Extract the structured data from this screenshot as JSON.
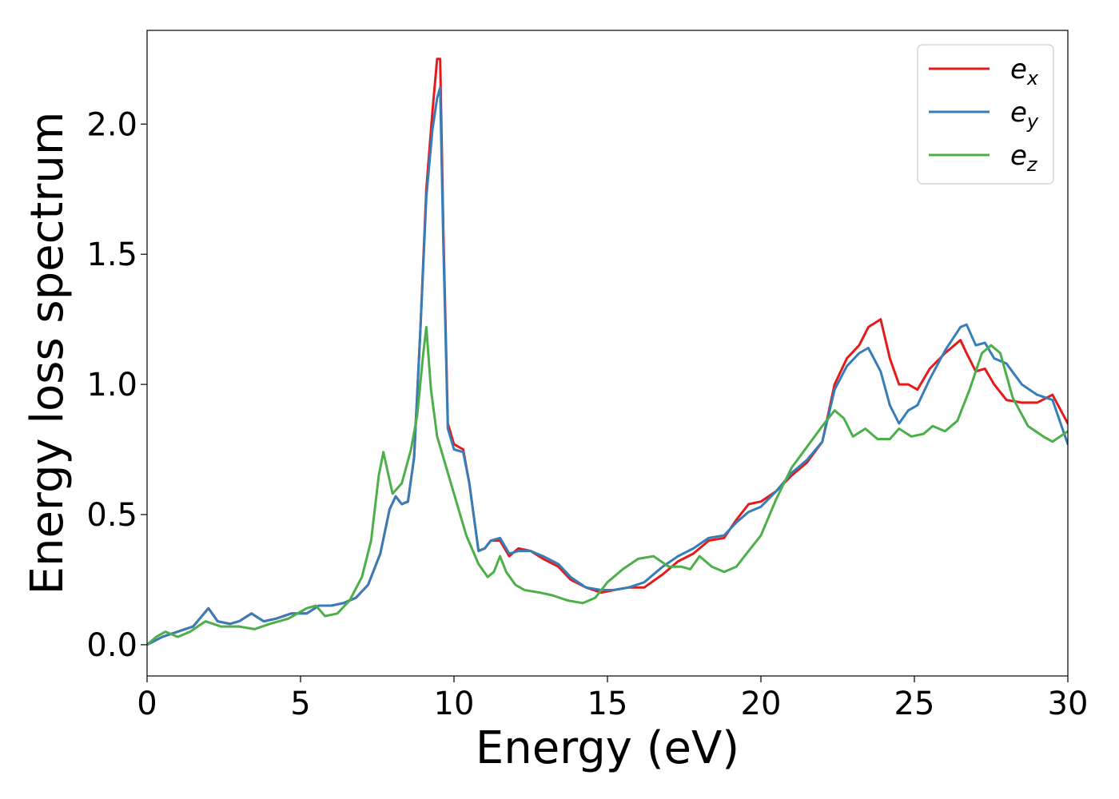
{
  "chart_data": {
    "type": "line",
    "xlabel": "Energy (eV)",
    "ylabel": "Energy loss spectrum",
    "xlim": [
      0,
      30
    ],
    "ylim": [
      -0.12,
      2.36
    ],
    "xticks": [
      0,
      5,
      10,
      15,
      20,
      25,
      30
    ],
    "yticks": [
      0.0,
      0.5,
      1.0,
      1.5,
      2.0
    ],
    "xtick_labels": [
      "0",
      "5",
      "10",
      "15",
      "20",
      "25",
      "30"
    ],
    "ytick_labels": [
      "0.0",
      "0.5",
      "1.0",
      "1.5",
      "2.0"
    ],
    "grid": false,
    "legend_position": "top-right",
    "series": [
      {
        "name": "e_x",
        "legend_base": "e",
        "legend_sub": "x",
        "color": "#e41a1c",
        "x": [
          0,
          0.5,
          1.0,
          1.5,
          2.0,
          2.3,
          2.7,
          3.0,
          3.4,
          3.8,
          4.2,
          4.7,
          5.2,
          5.6,
          6.0,
          6.4,
          6.8,
          7.2,
          7.6,
          7.9,
          8.1,
          8.3,
          8.5,
          8.7,
          8.9,
          9.1,
          9.3,
          9.45,
          9.55,
          9.65,
          9.8,
          10.0,
          10.3,
          10.5,
          10.8,
          11.0,
          11.2,
          11.5,
          11.8,
          12.1,
          12.5,
          12.9,
          13.4,
          13.8,
          14.3,
          14.8,
          15.2,
          15.7,
          16.2,
          16.8,
          17.3,
          17.8,
          18.3,
          18.8,
          19.2,
          19.6,
          20.0,
          20.5,
          21.0,
          21.5,
          22.0,
          22.4,
          22.8,
          23.2,
          23.5,
          23.9,
          24.2,
          24.5,
          24.8,
          25.1,
          25.5,
          26.0,
          26.5,
          26.7,
          27.0,
          27.3,
          27.6,
          28.0,
          28.5,
          29.0,
          29.5,
          30.0
        ],
        "y": [
          0.0,
          0.03,
          0.05,
          0.07,
          0.14,
          0.09,
          0.08,
          0.09,
          0.12,
          0.09,
          0.1,
          0.12,
          0.12,
          0.15,
          0.15,
          0.16,
          0.18,
          0.23,
          0.35,
          0.52,
          0.57,
          0.54,
          0.55,
          0.72,
          1.2,
          1.75,
          2.05,
          2.25,
          2.25,
          1.6,
          0.85,
          0.77,
          0.75,
          0.62,
          0.36,
          0.37,
          0.4,
          0.4,
          0.34,
          0.37,
          0.36,
          0.33,
          0.3,
          0.25,
          0.22,
          0.2,
          0.21,
          0.22,
          0.22,
          0.27,
          0.32,
          0.35,
          0.4,
          0.41,
          0.48,
          0.54,
          0.55,
          0.59,
          0.65,
          0.7,
          0.78,
          1.0,
          1.1,
          1.15,
          1.22,
          1.25,
          1.1,
          1.0,
          1.0,
          0.98,
          1.06,
          1.12,
          1.17,
          1.12,
          1.05,
          1.06,
          1.0,
          0.94,
          0.93,
          0.93,
          0.96,
          0.85
        ]
      },
      {
        "name": "e_y",
        "legend_base": "e",
        "legend_sub": "y",
        "color": "#377eb8",
        "x": [
          0,
          0.5,
          1.0,
          1.5,
          2.0,
          2.3,
          2.7,
          3.0,
          3.4,
          3.8,
          4.2,
          4.7,
          5.2,
          5.6,
          6.0,
          6.4,
          6.8,
          7.2,
          7.6,
          7.9,
          8.1,
          8.3,
          8.5,
          8.7,
          8.9,
          9.1,
          9.3,
          9.45,
          9.55,
          9.65,
          9.8,
          10.0,
          10.3,
          10.5,
          10.8,
          11.0,
          11.2,
          11.5,
          11.8,
          12.1,
          12.5,
          12.9,
          13.4,
          13.8,
          14.3,
          14.8,
          15.2,
          15.7,
          16.2,
          16.8,
          17.3,
          17.8,
          18.3,
          18.8,
          19.2,
          19.6,
          20.0,
          20.5,
          21.0,
          21.5,
          22.0,
          22.4,
          22.8,
          23.2,
          23.5,
          23.9,
          24.2,
          24.5,
          24.8,
          25.1,
          25.5,
          26.0,
          26.5,
          26.7,
          27.0,
          27.3,
          27.6,
          28.0,
          28.5,
          29.0,
          29.5,
          30.0
        ],
        "y": [
          0.0,
          0.03,
          0.05,
          0.07,
          0.14,
          0.09,
          0.08,
          0.09,
          0.12,
          0.09,
          0.1,
          0.12,
          0.12,
          0.15,
          0.15,
          0.16,
          0.18,
          0.23,
          0.35,
          0.52,
          0.57,
          0.54,
          0.55,
          0.72,
          1.2,
          1.72,
          1.98,
          2.1,
          2.14,
          1.55,
          0.83,
          0.75,
          0.74,
          0.62,
          0.36,
          0.37,
          0.4,
          0.41,
          0.35,
          0.36,
          0.36,
          0.34,
          0.31,
          0.26,
          0.22,
          0.21,
          0.21,
          0.22,
          0.24,
          0.3,
          0.34,
          0.37,
          0.41,
          0.42,
          0.47,
          0.51,
          0.53,
          0.59,
          0.66,
          0.71,
          0.78,
          0.98,
          1.07,
          1.12,
          1.14,
          1.05,
          0.92,
          0.85,
          0.9,
          0.92,
          1.02,
          1.13,
          1.22,
          1.23,
          1.15,
          1.16,
          1.1,
          1.08,
          1.0,
          0.96,
          0.94,
          0.77
        ]
      },
      {
        "name": "e_z",
        "legend_base": "e",
        "legend_sub": "z",
        "color": "#4daf4a",
        "x": [
          0,
          0.3,
          0.6,
          1.0,
          1.4,
          1.9,
          2.4,
          3.0,
          3.5,
          4.0,
          4.6,
          5.2,
          5.5,
          5.8,
          6.2,
          6.6,
          7.0,
          7.3,
          7.55,
          7.7,
          7.85,
          8.0,
          8.3,
          8.6,
          8.8,
          9.0,
          9.1,
          9.25,
          9.45,
          9.7,
          10.0,
          10.4,
          10.8,
          11.1,
          11.3,
          11.5,
          11.7,
          12.0,
          12.3,
          12.8,
          13.2,
          13.7,
          14.2,
          14.6,
          15.0,
          15.5,
          16.0,
          16.5,
          17.0,
          17.4,
          17.7,
          18.0,
          18.4,
          18.8,
          19.2,
          19.6,
          20.0,
          20.5,
          21.0,
          21.5,
          22.0,
          22.4,
          22.7,
          23.0,
          23.4,
          23.8,
          24.2,
          24.5,
          24.9,
          25.3,
          25.6,
          26.0,
          26.4,
          26.8,
          27.2,
          27.5,
          27.8,
          28.2,
          28.7,
          29.2,
          29.5,
          30.0
        ],
        "y": [
          0.0,
          0.03,
          0.05,
          0.03,
          0.05,
          0.09,
          0.07,
          0.07,
          0.06,
          0.08,
          0.1,
          0.14,
          0.15,
          0.11,
          0.12,
          0.17,
          0.26,
          0.4,
          0.65,
          0.74,
          0.66,
          0.58,
          0.62,
          0.75,
          0.88,
          1.12,
          1.22,
          0.98,
          0.8,
          0.7,
          0.58,
          0.42,
          0.31,
          0.26,
          0.28,
          0.34,
          0.28,
          0.23,
          0.21,
          0.2,
          0.19,
          0.17,
          0.16,
          0.18,
          0.24,
          0.29,
          0.33,
          0.34,
          0.3,
          0.3,
          0.29,
          0.34,
          0.3,
          0.28,
          0.3,
          0.36,
          0.42,
          0.56,
          0.68,
          0.76,
          0.84,
          0.9,
          0.87,
          0.8,
          0.83,
          0.79,
          0.79,
          0.83,
          0.8,
          0.81,
          0.84,
          0.82,
          0.86,
          0.98,
          1.12,
          1.15,
          1.12,
          0.95,
          0.84,
          0.8,
          0.78,
          0.82
        ]
      }
    ]
  }
}
